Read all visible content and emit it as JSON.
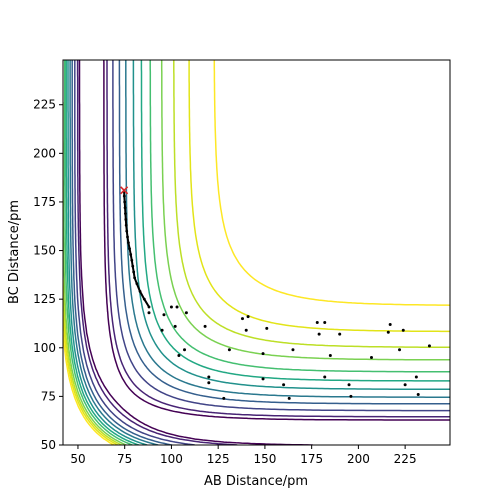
{
  "chart_data": {
    "type": "contour",
    "title": "",
    "xlabel": "AB Distance/pm",
    "ylabel": "BC Distance/pm",
    "xlim": [
      42,
      249
    ],
    "ylim": [
      50,
      248
    ],
    "xticks": [
      50,
      75,
      100,
      125,
      150,
      175,
      200,
      225
    ],
    "yticks": [
      50,
      75,
      100,
      125,
      150,
      175,
      200,
      225
    ],
    "grid": false,
    "legend": "none",
    "contour_levels": [
      {
        "level": 1,
        "color": "#440154"
      },
      {
        "level": 2,
        "color": "#46327e"
      },
      {
        "level": 3,
        "color": "#365c8d"
      },
      {
        "level": 4,
        "color": "#277f8e"
      },
      {
        "level": 5,
        "color": "#1fa187"
      },
      {
        "level": 6,
        "color": "#4ac16d"
      },
      {
        "level": 7,
        "color": "#a0da39"
      },
      {
        "level": 8,
        "color": "#fde725"
      }
    ],
    "trajectory": [
      [
        74.7,
        180.5
      ],
      [
        74.8,
        178
      ],
      [
        75.0,
        175
      ],
      [
        75.2,
        172
      ],
      [
        75.4,
        169
      ],
      [
        75.6,
        166
      ],
      [
        75.8,
        163
      ],
      [
        76.1,
        160
      ],
      [
        76.5,
        157
      ],
      [
        77.0,
        154
      ],
      [
        77.6,
        151
      ],
      [
        78.2,
        148
      ],
      [
        78.8,
        145
      ],
      [
        79.3,
        142
      ],
      [
        79.8,
        139
      ],
      [
        80.3,
        136
      ],
      [
        81.5,
        133
      ],
      [
        83.2,
        129
      ],
      [
        85.5,
        125
      ],
      [
        88,
        121
      ]
    ],
    "trajectory_color": "#000000",
    "start_marker": {
      "x": 74.7,
      "y": 181,
      "color": "#d62728"
    },
    "scatter_points": [
      [
        88,
        118
      ],
      [
        96,
        117
      ],
      [
        100,
        121
      ],
      [
        103,
        121
      ],
      [
        108,
        118
      ],
      [
        118,
        111
      ],
      [
        95,
        109
      ],
      [
        102,
        111
      ],
      [
        107,
        99
      ],
      [
        104,
        96
      ],
      [
        138,
        115
      ],
      [
        141,
        116
      ],
      [
        151,
        110
      ],
      [
        140,
        109
      ],
      [
        178,
        113
      ],
      [
        182,
        113
      ],
      [
        179,
        107
      ],
      [
        190,
        107
      ],
      [
        217,
        112
      ],
      [
        216,
        108
      ],
      [
        224,
        109
      ],
      [
        131,
        99
      ],
      [
        149,
        97
      ],
      [
        165,
        99
      ],
      [
        185,
        96
      ],
      [
        207,
        95
      ],
      [
        222,
        99
      ],
      [
        238,
        101
      ],
      [
        120,
        85
      ],
      [
        120,
        82
      ],
      [
        149,
        84
      ],
      [
        160,
        81
      ],
      [
        182,
        85
      ],
      [
        195,
        81
      ],
      [
        225,
        81
      ],
      [
        231,
        85
      ],
      [
        128,
        74
      ],
      [
        163,
        74
      ],
      [
        196,
        75
      ],
      [
        232,
        76
      ]
    ]
  }
}
